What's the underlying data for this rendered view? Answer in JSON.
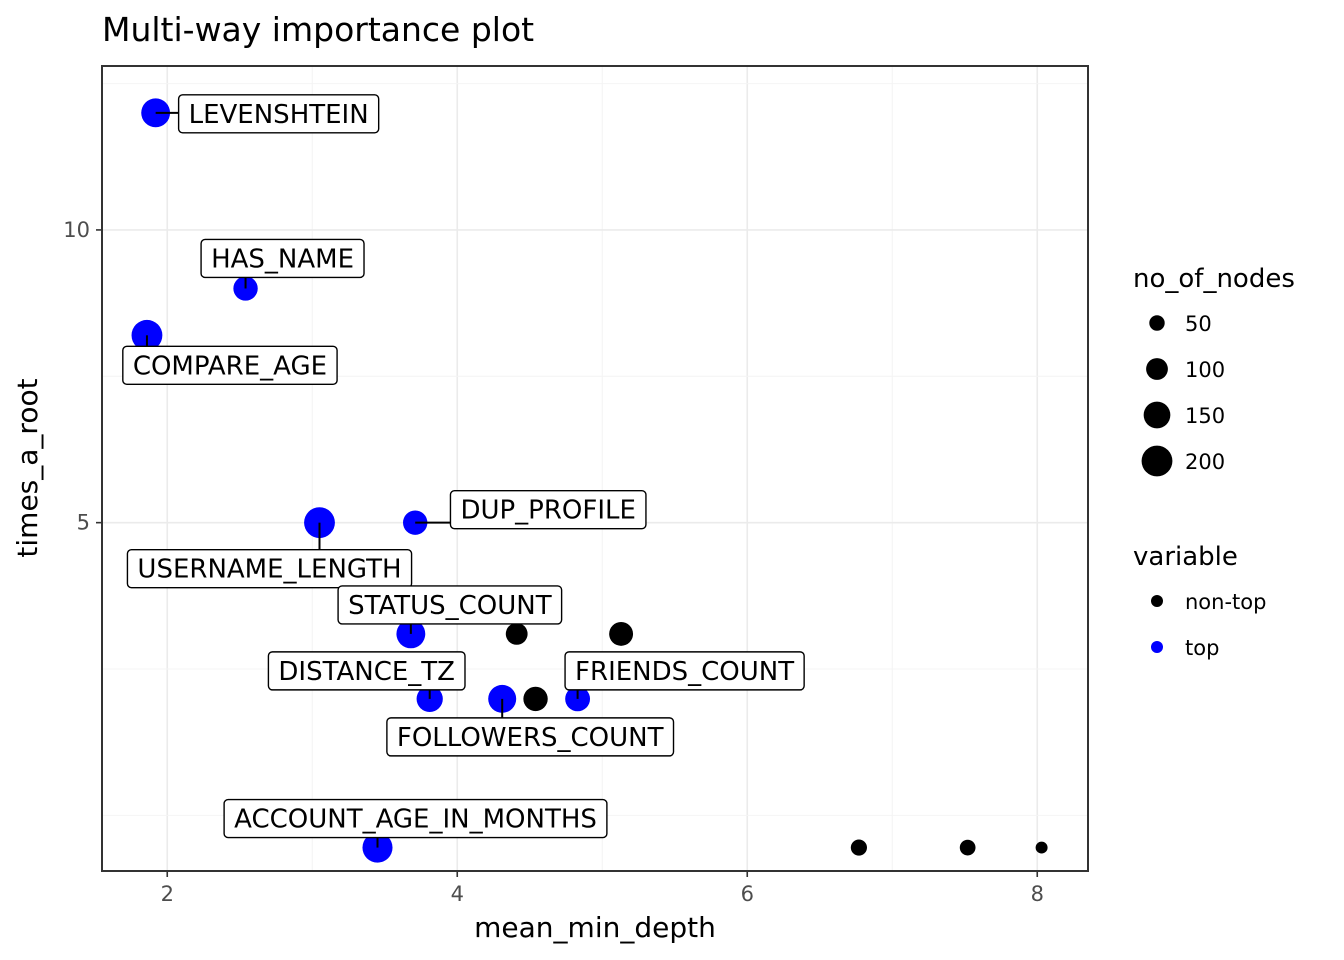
{
  "chart_data": {
    "type": "scatter",
    "title": "Multi-way importance plot",
    "xlabel": "mean_min_depth",
    "ylabel": "times_a_root",
    "xlim": [
      1.55,
      8.35
    ],
    "ylim": [
      -0.95,
      12.8
    ],
    "x_ticks": [
      2,
      4,
      6,
      8
    ],
    "x_tick_labels": [
      "2",
      "4",
      "6",
      "8"
    ],
    "y_ticks": [
      5,
      10
    ],
    "y_tick_labels": [
      "5",
      "10"
    ],
    "grid": true,
    "legend_position": "right",
    "legend": {
      "size_title": "no_of_nodes",
      "size_entries": [
        {
          "label": "50",
          "value": 50
        },
        {
          "label": "100",
          "value": 100
        },
        {
          "label": "150",
          "value": 150
        },
        {
          "label": "200",
          "value": 200
        }
      ],
      "color_title": "variable",
      "color_entries": [
        {
          "label": "non-top",
          "color": "#000000"
        },
        {
          "label": "top",
          "color": "#0000ff"
        }
      ]
    },
    "points": [
      {
        "label": "LEVENSHTEIN",
        "x": 1.92,
        "y": 12.0,
        "size": 175,
        "group": "top"
      },
      {
        "label": "HAS_NAME",
        "x": 2.54,
        "y": 9.0,
        "size": 125,
        "group": "top"
      },
      {
        "label": "COMPARE_AGE",
        "x": 1.86,
        "y": 8.2,
        "size": 200,
        "group": "top"
      },
      {
        "label": "USERNAME_LENGTH",
        "x": 3.05,
        "y": 5.0,
        "size": 200,
        "group": "top"
      },
      {
        "label": "DUP_PROFILE",
        "x": 3.71,
        "y": 5.0,
        "size": 125,
        "group": "top"
      },
      {
        "label": "STATUS_COUNT",
        "x": 3.68,
        "y": 3.1,
        "size": 175,
        "group": "top"
      },
      {
        "label": "",
        "x": 4.41,
        "y": 3.1,
        "size": 100,
        "group": "non-top"
      },
      {
        "label": "",
        "x": 5.13,
        "y": 3.1,
        "size": 120,
        "group": "non-top"
      },
      {
        "label": "DISTANCE_TZ",
        "x": 3.81,
        "y": 1.99,
        "size": 145,
        "group": "top"
      },
      {
        "label": "FOLLOWERS_COUNT",
        "x": 4.31,
        "y": 1.99,
        "size": 165,
        "group": "top"
      },
      {
        "label": "",
        "x": 4.54,
        "y": 1.99,
        "size": 125,
        "group": "non-top"
      },
      {
        "label": "FRIENDS_COUNT",
        "x": 4.83,
        "y": 1.99,
        "size": 130,
        "group": "top"
      },
      {
        "label": "ACCOUNT_AGE_IN_MONTHS",
        "x": 3.45,
        "y": -0.55,
        "size": 190,
        "group": "top"
      },
      {
        "label": "",
        "x": 6.77,
        "y": -0.55,
        "size": 55,
        "group": "non-top"
      },
      {
        "label": "",
        "x": 7.52,
        "y": -0.55,
        "size": 52,
        "group": "non-top"
      },
      {
        "label": "",
        "x": 8.03,
        "y": -0.55,
        "size": 30,
        "group": "non-top"
      }
    ]
  }
}
